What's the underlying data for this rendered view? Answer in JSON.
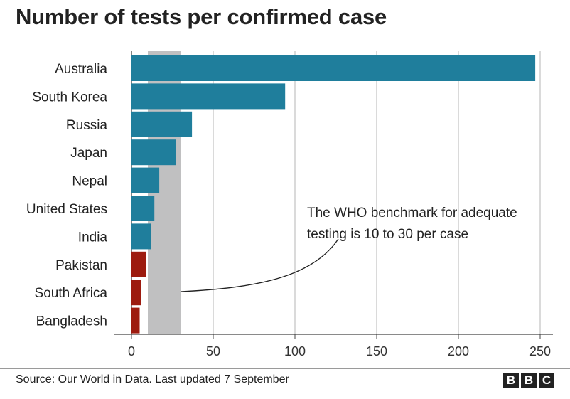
{
  "title": "Number of tests per confirmed case",
  "source": "Source: Our World in Data. Last updated 7 September",
  "logo": [
    "B",
    "B",
    "C"
  ],
  "chart_data": {
    "type": "bar",
    "orientation": "horizontal",
    "categories": [
      "Australia",
      "South Korea",
      "Russia",
      "Japan",
      "Nepal",
      "United States",
      "India",
      "Pakistan",
      "South Africa",
      "Bangladesh"
    ],
    "values": [
      247,
      94,
      37,
      27,
      17,
      14,
      12,
      9,
      6,
      5
    ],
    "bar_colors": [
      "#1f7e9c",
      "#1f7e9c",
      "#1f7e9c",
      "#1f7e9c",
      "#1f7e9c",
      "#1f7e9c",
      "#1f7e9c",
      "#9d1b0f",
      "#9d1b0f",
      "#9d1b0f"
    ],
    "xlim": [
      0,
      250
    ],
    "xticks": [
      0,
      50,
      100,
      150,
      200,
      250
    ],
    "grid": true,
    "benchmark_band": {
      "from": 10,
      "to": 30,
      "color": "#c0c0c1"
    },
    "annotation": "The WHO benchmark for adequate testing is 10 to 30 per case",
    "annotation_lines": [
      "The WHO benchmark for adequate",
      "testing is 10 to 30 per case"
    ]
  }
}
